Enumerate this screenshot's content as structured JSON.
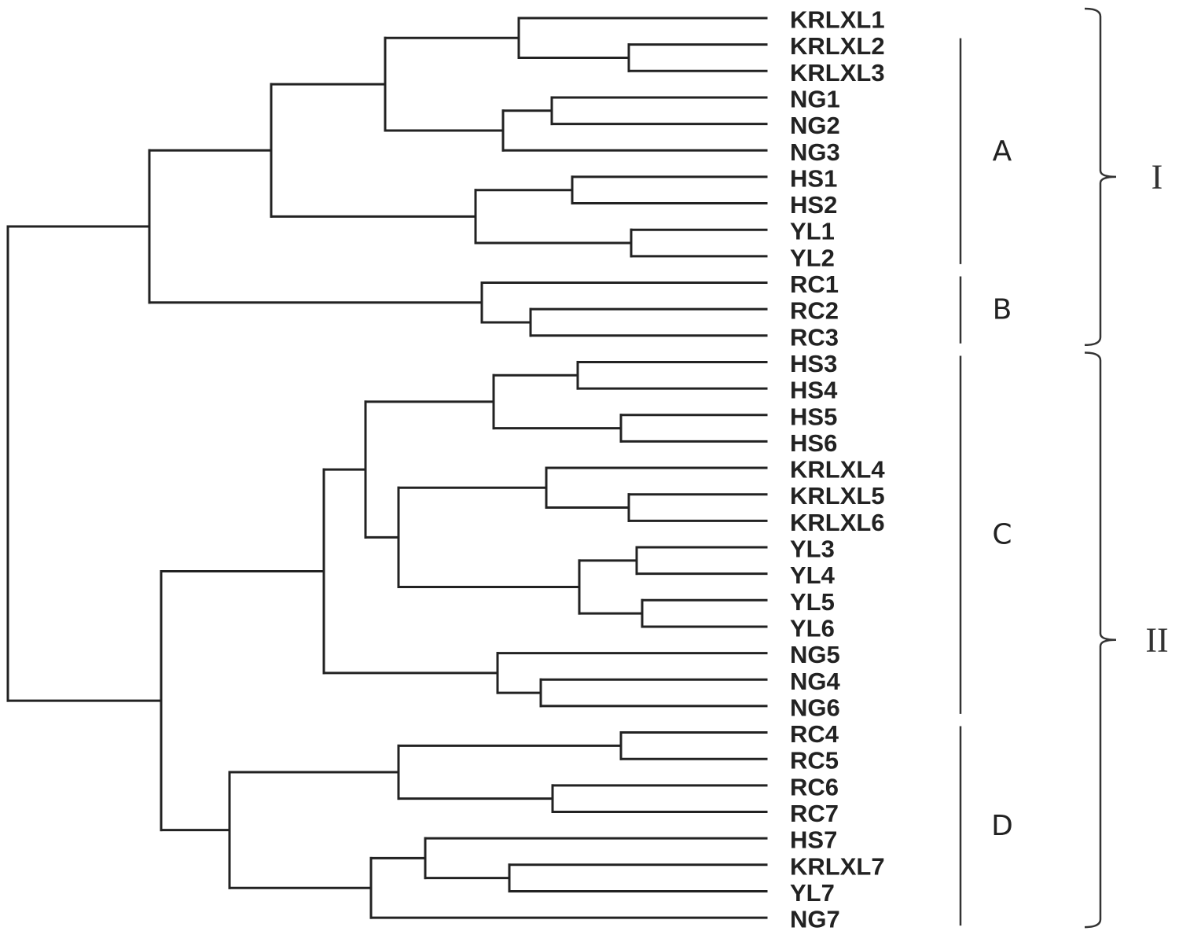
{
  "leaves": [
    "KRLXL1",
    "KRLXL2",
    "KRLXL3",
    "NG1",
    "NG2",
    "NG3",
    "HS1",
    "HS2",
    "YL1",
    "YL2",
    "RC1",
    "RC2",
    "RC3",
    "HS3",
    "HS4",
    "HS5",
    "HS6",
    "KRLXL4",
    "KRLXL5",
    "KRLXL6",
    "YL3",
    "YL4",
    "YL5",
    "YL6",
    "NG5",
    "NG4",
    "NG6",
    "RC4",
    "RC5",
    "RC6",
    "RC7",
    "HS7",
    "KRLXL7",
    "YL7",
    "NG7"
  ],
  "groups": [
    {
      "label": "A",
      "first": 1,
      "last": 9
    },
    {
      "label": "B",
      "first": 10,
      "last": 12
    },
    {
      "label": "C",
      "first": 13,
      "last": 26
    },
    {
      "label": "D",
      "first": 27,
      "last": 34
    }
  ],
  "clusters": [
    {
      "label": "I",
      "first": 0,
      "last": 12
    },
    {
      "label": "II",
      "first": 13,
      "last": 34
    }
  ]
}
